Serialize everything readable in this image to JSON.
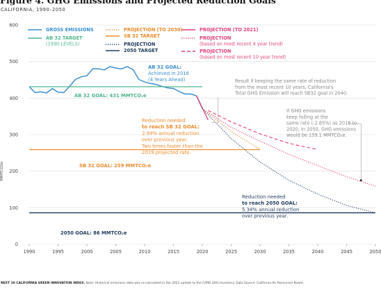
{
  "header": {
    "title": "Figure 4. GHG Emissions and Projected Reduction Goals",
    "subtitle": "CALIFORNIA, 1990–2050"
  },
  "footnote": {
    "source_bold": "NEXT 10 CALIFORNIA GREEN INNOVATION INDEX.",
    "source_text": "Note: Historical emissions data was re-calculated in the 2022 update to the CARB GHG Inventory. Data Source: California Air Resources Board,"
  },
  "colors": {
    "gross": "#3b8fd0",
    "ab32": "#4fb48c",
    "sb32": "#ee8a2c",
    "target2050": "#1f3b5c",
    "projection2021": "#e0407a",
    "projection2030": "#ee8a2c",
    "projection2050": "#1f3b5c",
    "annotation": "#999999"
  },
  "chart_data": {
    "type": "line",
    "ylabel": "MMTCO2e",
    "xlim": [
      1990,
      2050
    ],
    "ylim": [
      0,
      600
    ],
    "x_ticks": [
      1990,
      1995,
      2000,
      2005,
      2010,
      2015,
      2020,
      2025,
      2030,
      2035,
      2040,
      2045,
      2050
    ],
    "y_ticks": [
      0,
      100,
      200,
      300,
      400,
      500,
      600
    ],
    "legend": {
      "col1": [
        {
          "key": "gross",
          "label": "GROSS EMISSIONS",
          "style": "solid"
        },
        {
          "key": "ab32",
          "label": "AB 32 TARGET",
          "label2": "(1990 LEVELS)",
          "style": "solid"
        }
      ],
      "col2": [
        {
          "key": "projection2030",
          "label": "PROJECTION (TO 2030)",
          "style": "dotted"
        },
        {
          "key": "sb32",
          "label": "SB 32 TARGET",
          "style": "solid"
        },
        {
          "key": "projection2050",
          "label": "PROJECTION",
          "style": "dotted"
        },
        {
          "key": "target2050",
          "label": "2050 TARGET",
          "style": "solid"
        }
      ],
      "col3": [
        {
          "key": "projection2021",
          "label": "PROJECTION (TO 2021)",
          "style": "solid"
        },
        {
          "key": "projection2021",
          "label": "PROJECTION",
          "label2": "(based on most recent 4 year trend)",
          "style": "dotted"
        },
        {
          "key": "projection2021",
          "label": "PROJECTION",
          "label2": "(based on most recent 10 year trend)",
          "style": "dashed"
        }
      ]
    },
    "series": [
      {
        "key": "gross",
        "name": "GROSS EMISSIONS",
        "style": "solid",
        "x": [
          1990,
          1991,
          1992,
          1993,
          1994,
          1995,
          1996,
          1997,
          1998,
          1999,
          2000,
          2001,
          2002,
          2003,
          2004,
          2005,
          2006,
          2007,
          2008,
          2009,
          2010,
          2011,
          2012,
          2013,
          2014,
          2015,
          2016,
          2017,
          2018,
          2019,
          2020
        ],
        "y": [
          431,
          415,
          417,
          414,
          426,
          416,
          415,
          432,
          451,
          458,
          461,
          480,
          480,
          477,
          486,
          482,
          480,
          486,
          478,
          451,
          444,
          440,
          437,
          432,
          428,
          426,
          418,
          411,
          411,
          406,
          371
        ]
      },
      {
        "key": "ab32",
        "name": "AB 32 TARGET",
        "style": "solid",
        "x": [
          1990,
          2020
        ],
        "y": [
          431,
          431
        ]
      },
      {
        "key": "sb32",
        "name": "SB 32 TARGET",
        "style": "solid",
        "x": [
          1990,
          2030
        ],
        "y": [
          259,
          259
        ]
      },
      {
        "key": "target2050",
        "name": "2050 TARGET",
        "style": "solid",
        "x": [
          1990,
          2050
        ],
        "y": [
          86,
          86
        ]
      },
      {
        "key": "projection2021",
        "name": "PROJECTION (TO 2021)",
        "style": "solid",
        "x": [
          2019,
          2021
        ],
        "y": [
          406,
          340
        ]
      },
      {
        "key": "projection2021",
        "name": "PROJECTION (based on most recent 10 year trend)",
        "style": "dashed",
        "x": [
          2021,
          2025,
          2030,
          2035,
          2040
        ],
        "y": [
          366,
          335,
          302,
          276,
          259
        ]
      },
      {
        "key": "projection2021",
        "name": "PROJECTION (based on most recent 4 year trend)",
        "style": "dotted",
        "x": [
          2020,
          2025,
          2030,
          2035,
          2040,
          2045,
          2050
        ],
        "y": [
          371,
          320,
          282,
          246,
          215,
          185,
          159
        ]
      },
      {
        "key": "projection2030",
        "name": "PROJECTION (TO 2030)",
        "style": "dotted",
        "x": [
          2020,
          2025,
          2030
        ],
        "y": [
          371,
          309,
          259
        ]
      },
      {
        "key": "projection2050",
        "name": "PROJECTION",
        "style": "dotted",
        "x": [
          2020,
          2025,
          2030,
          2035,
          2040,
          2045,
          2050
        ],
        "y": [
          371,
          289,
          225,
          175,
          137,
          106,
          86
        ]
      }
    ],
    "annotations": {
      "ab32_goal_label": "AB 32 GOAL: 431 MMTCO₂e",
      "ab32_achieved": [
        "AB 32 GOAL:",
        "Achieved in 2016",
        "(4 Years Ahead)"
      ],
      "sb32_goal_label": "SB 32 GOAL: 259 MMTCO₂e",
      "goal2050_label": "2050 GOAL: 86 MMTCO₂e",
      "sb32_reduction": [
        "Reduction needed",
        "to reach SB 32 GOAL:",
        "2.99% annual reduction",
        "over previous year.",
        "Two times faster than the",
        "2019 projected rate."
      ],
      "goal2050_reduction": [
        "Reduction needed",
        "to reach 2050 GOAL:",
        "5.34% annual reduction",
        "over previous year."
      ],
      "result_note": [
        "Result if keeping the same rate of reduction",
        "from the most recent 10 years, California's",
        "Total GHG Emission will reach SB32 goal in 2040."
      ],
      "falling_note": [
        "If GHG emissions",
        "keep falling at the",
        "same rate (-2.85%) as 2016 to",
        "2020, in 2050, GHG emissions",
        "would be 159.1 MMTCO₂e."
      ]
    }
  }
}
